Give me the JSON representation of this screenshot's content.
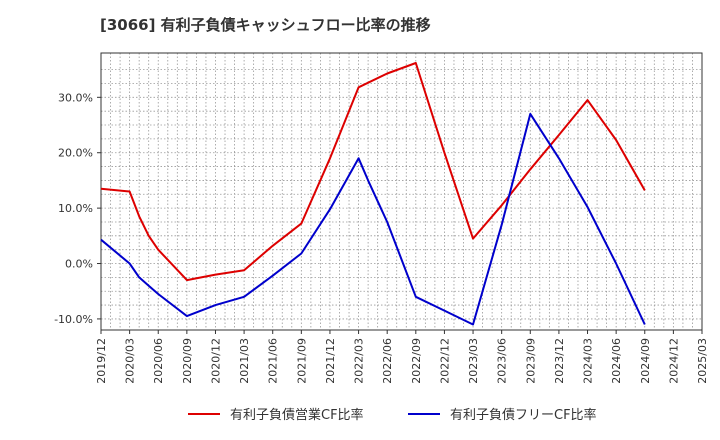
{
  "chart_data": {
    "type": "line",
    "title": "[3066]  有利子負債キャッシュフロー比率の推移",
    "x": [
      "2019/12",
      "2020/03",
      "2020/06",
      "2020/09",
      "2020/12",
      "2021/03",
      "2021/06",
      "2021/09",
      "2021/12",
      "2022/03",
      "2022/06",
      "2022/09",
      "2022/12",
      "2023/03",
      "2023/06",
      "2023/09",
      "2023/12",
      "2024/03",
      "2024/06",
      "2024/09",
      "2024/12",
      "2025/03"
    ],
    "xlim_labels": [
      "2019/12",
      "2020/03",
      "2020/06",
      "2020/09",
      "2020/12",
      "2021/03",
      "2021/06",
      "2021/09",
      "2021/12",
      "2022/03",
      "2022/06",
      "2022/09",
      "2022/12",
      "2023/03",
      "2023/06",
      "2023/09",
      "2023/12",
      "2024/03",
      "2024/06",
      "2024/09",
      "2024/12",
      "2025/03"
    ],
    "y_ticks": [
      -10,
      0,
      10,
      20,
      30
    ],
    "y_tick_labels": [
      "-10.0%",
      "0.0%",
      "10.0%",
      "20.0%",
      "30.0%"
    ],
    "ylim": [
      -12,
      38
    ],
    "grid": true,
    "legend_position": "bottom",
    "series": [
      {
        "name": "有利子負債営業CF比率",
        "color": "#dd0000",
        "points": [
          [
            "2019/12",
            13.5
          ],
          [
            "2020/03",
            13.0
          ],
          [
            "2020/04",
            8.5
          ],
          [
            "2020/05",
            5.0
          ],
          [
            "2020/06",
            2.5
          ],
          [
            "2020/09",
            -3.0
          ],
          [
            "2020/12",
            -2.0
          ],
          [
            "2021/03",
            -1.2
          ],
          [
            "2021/06",
            3.2
          ],
          [
            "2021/09",
            7.2
          ],
          [
            "2021/12",
            19.0
          ],
          [
            "2022/03",
            31.8
          ],
          [
            "2022/06",
            34.3
          ],
          [
            "2022/09",
            36.2
          ],
          [
            "2022/12",
            20.0
          ],
          [
            "2023/03",
            4.5
          ],
          [
            "2023/06",
            10.5
          ],
          [
            "2023/09",
            17.0
          ],
          [
            "2023/12",
            23.2
          ],
          [
            "2024/03",
            29.5
          ],
          [
            "2024/06",
            22.3
          ],
          [
            "2024/09",
            13.2
          ]
        ]
      },
      {
        "name": "有利子負債フリーCF比率",
        "color": "#0000cc",
        "points": [
          [
            "2019/12",
            4.3
          ],
          [
            "2020/03",
            0.0
          ],
          [
            "2020/04",
            -2.5
          ],
          [
            "2020/05",
            -4.0
          ],
          [
            "2020/06",
            -5.5
          ],
          [
            "2020/09",
            -9.5
          ],
          [
            "2020/12",
            -7.5
          ],
          [
            "2021/03",
            -6.0
          ],
          [
            "2021/06",
            -2.2
          ],
          [
            "2021/09",
            1.8
          ],
          [
            "2021/12",
            9.8
          ],
          [
            "2022/03",
            19.0
          ],
          [
            "2022/04",
            15.0
          ],
          [
            "2022/06",
            7.5
          ],
          [
            "2022/09",
            -6.0
          ],
          [
            "2022/12",
            -8.5
          ],
          [
            "2023/03",
            -11.0
          ],
          [
            "2023/06",
            7.0
          ],
          [
            "2023/09",
            27.0
          ],
          [
            "2023/12",
            19.0
          ],
          [
            "2024/03",
            10.2
          ],
          [
            "2024/06",
            0.0
          ],
          [
            "2024/09",
            -11.0
          ]
        ]
      }
    ]
  }
}
